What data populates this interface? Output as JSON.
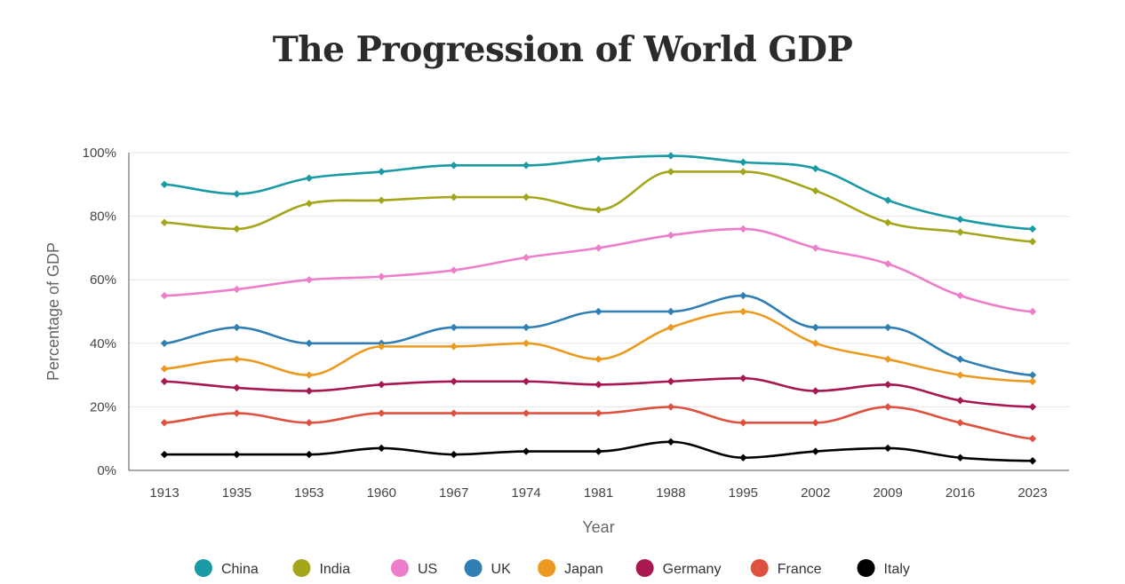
{
  "chart_data": {
    "type": "line",
    "title": "The Progression of World GDP",
    "xlabel": "Year",
    "ylabel": "Percentage of GDP",
    "categories": [
      "1913",
      "1935",
      "1953",
      "1960",
      "1967",
      "1974",
      "1981",
      "1988",
      "1995",
      "2002",
      "2009",
      "2016",
      "2023"
    ],
    "ylim": [
      0,
      100
    ],
    "yticks": [
      0,
      20,
      40,
      60,
      80,
      100
    ],
    "ytick_suffix": "%",
    "grid": true,
    "legend_position": "bottom",
    "series": [
      {
        "name": "China",
        "color": "#1a9aa5",
        "values": [
          90,
          87,
          92,
          94,
          96,
          96,
          98,
          99,
          97,
          95,
          85,
          79,
          76
        ]
      },
      {
        "name": "India",
        "color": "#a3a51a",
        "values": [
          78,
          76,
          84,
          85,
          86,
          86,
          82,
          94,
          94,
          88,
          78,
          75,
          72
        ]
      },
      {
        "name": "US",
        "color": "#ee7ecb",
        "values": [
          55,
          57,
          60,
          61,
          63,
          67,
          70,
          74,
          76,
          70,
          65,
          55,
          50
        ]
      },
      {
        "name": "UK",
        "color": "#2f7fb4",
        "values": [
          40,
          45,
          40,
          40,
          45,
          45,
          50,
          50,
          55,
          45,
          45,
          35,
          30
        ]
      },
      {
        "name": "Japan",
        "color": "#ec9a1f",
        "values": [
          32,
          35,
          30,
          39,
          39,
          40,
          35,
          45,
          50,
          40,
          35,
          30,
          28
        ]
      },
      {
        "name": "Germany",
        "color": "#a8174f",
        "values": [
          28,
          26,
          25,
          27,
          28,
          28,
          27,
          28,
          29,
          25,
          27,
          22,
          20
        ]
      },
      {
        "name": "France",
        "color": "#e0503e",
        "values": [
          15,
          18,
          15,
          18,
          18,
          18,
          18,
          20,
          15,
          15,
          20,
          15,
          10
        ]
      },
      {
        "name": "Italy",
        "color": "#000000",
        "values": [
          5,
          5,
          5,
          7,
          5,
          6,
          6,
          9,
          4,
          6,
          7,
          4,
          3
        ]
      }
    ]
  }
}
